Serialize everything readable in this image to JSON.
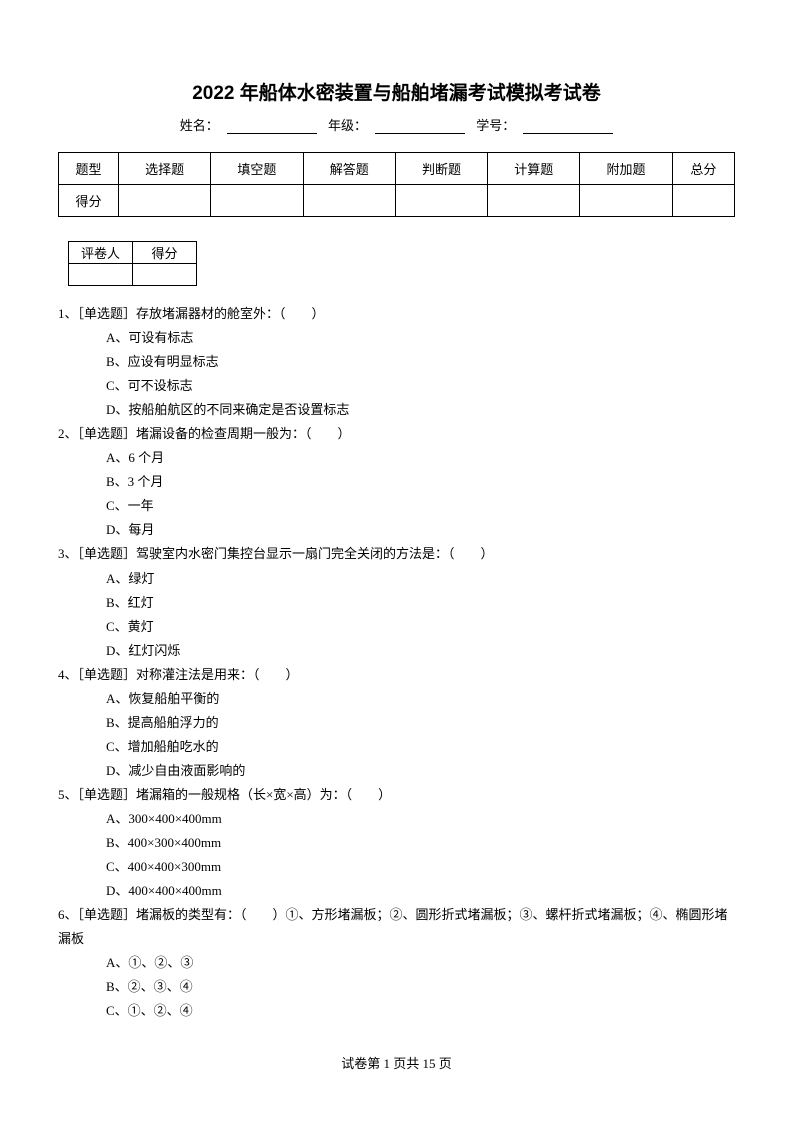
{
  "title": "2022 年船体水密装置与船舶堵漏考试模拟考试卷",
  "info": {
    "nameLabel": "姓名：",
    "gradeLabel": "年级：",
    "idLabel": "学号："
  },
  "scoreTable": {
    "row1": [
      "题型",
      "选择题",
      "填空题",
      "解答题",
      "判断题",
      "计算题",
      "附加题",
      "总分"
    ],
    "row2Label": "得分"
  },
  "graderTable": {
    "c1": "评卷人",
    "c2": "得分"
  },
  "questions": [
    {
      "stem": "1、［单选题］存放堵漏器材的舱室外：（　　）",
      "options": [
        "A、可设有标志",
        "B、应设有明显标志",
        "C、可不设标志",
        "D、按船舶航区的不同来确定是否设置标志"
      ]
    },
    {
      "stem": "2、［单选题］堵漏设备的检查周期一般为：（　　）",
      "options": [
        "A、6 个月",
        "B、3 个月",
        "C、一年",
        "D、每月"
      ]
    },
    {
      "stem": "3、［单选题］驾驶室内水密门集控台显示一扇门完全关闭的方法是：（　　）",
      "options": [
        "A、绿灯",
        "B、红灯",
        "C、黄灯",
        "D、红灯闪烁"
      ]
    },
    {
      "stem": "4、［单选题］对称灌注法是用来：（　　）",
      "options": [
        "A、恢复船舶平衡的",
        "B、提高船舶浮力的",
        "C、增加船舶吃水的",
        "D、减少自由液面影响的"
      ]
    },
    {
      "stem": "5、［单选题］堵漏箱的一般规格（长×宽×高）为：（　　）",
      "options": [
        "A、300×400×400mm",
        "B、400×300×400mm",
        "C、400×400×300mm",
        "D、400×400×400mm"
      ]
    },
    {
      "stem": "6、［单选题］堵漏板的类型有：（　　）①、方形堵漏板；②、圆形折式堵漏板；③、螺杆折式堵漏板；④、椭圆形堵漏板",
      "options": [
        "A、①、②、③",
        "B、②、③、④",
        "C、①、②、④"
      ]
    }
  ],
  "footer": "试卷第 1 页共 15 页"
}
